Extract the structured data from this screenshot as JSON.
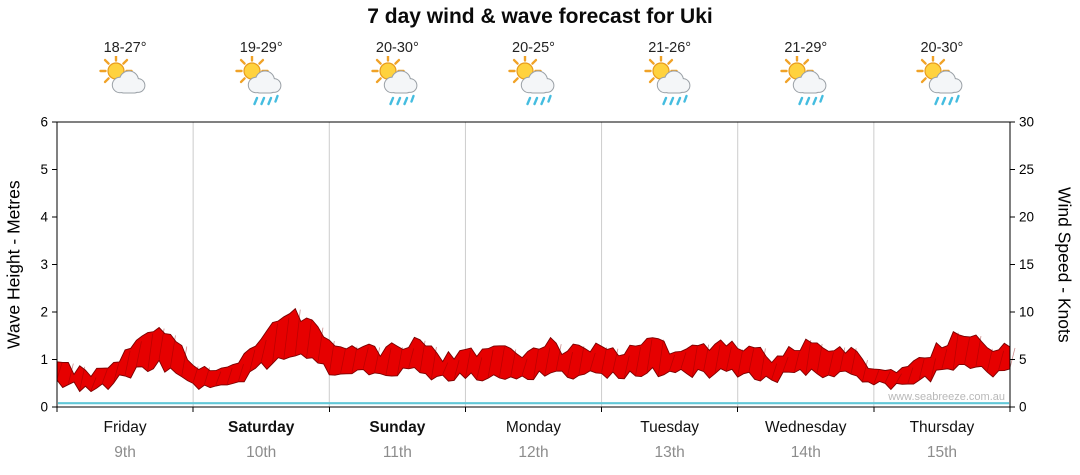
{
  "title": "7 day wind & wave forecast for Uki",
  "watermark": "www.seabreeze.com.au",
  "days": [
    {
      "name": "Friday",
      "date": "9th",
      "temp_range": "18-27°",
      "icon": "sun-cloud",
      "weekend": false
    },
    {
      "name": "Saturday",
      "date": "10th",
      "temp_range": "19-29°",
      "icon": "sun-cloud-rain",
      "weekend": true
    },
    {
      "name": "Sunday",
      "date": "11th",
      "temp_range": "20-30°",
      "icon": "sun-cloud-rain",
      "weekend": true
    },
    {
      "name": "Monday",
      "date": "12th",
      "temp_range": "20-25°",
      "icon": "sun-cloud-rain",
      "weekend": false
    },
    {
      "name": "Tuesday",
      "date": "13th",
      "temp_range": "21-26°",
      "icon": "sun-cloud-rain",
      "weekend": false
    },
    {
      "name": "Wednesday",
      "date": "14th",
      "temp_range": "21-29°",
      "icon": "sun-cloud-rain",
      "weekend": false
    },
    {
      "name": "Thursday",
      "date": "15th",
      "temp_range": "20-30°",
      "icon": "sun-cloud-rain",
      "weekend": false
    }
  ],
  "chart_data": {
    "type": "area",
    "title": "7 day wind & wave forecast for Uki",
    "x_categories": [
      "Friday 9th",
      "Saturday 10th",
      "Sunday 11th",
      "Monday 12th",
      "Tuesday 13th",
      "Wednesday 14th",
      "Thursday 15th"
    ],
    "left_axis": {
      "label": "Wave Height - Metres",
      "min": 0,
      "max": 6,
      "ticks": [
        0,
        1,
        2,
        3,
        4,
        5,
        6
      ]
    },
    "right_axis": {
      "label": "Wind Speed - Knots",
      "min": 0,
      "max": 30,
      "ticks": [
        0,
        5,
        10,
        15,
        20,
        25,
        30
      ]
    },
    "grid": "vertical-day-boundaries",
    "legend": "none",
    "series": [
      {
        "name": "Wind Speed",
        "axis": "right",
        "style": "jagged-arrow-band",
        "color": "#e60000",
        "outline": "#7a0000",
        "points_per_day": 8,
        "values_knots": [
          5.0,
          4.0,
          3.4,
          4.2,
          5.8,
          7.2,
          8.0,
          6.8,
          4.6,
          3.4,
          4.0,
          5.6,
          7.6,
          9.2,
          10.0,
          9.0,
          6.8,
          6.0,
          6.6,
          5.6,
          6.4,
          7.0,
          5.8,
          5.2,
          6.2,
          5.6,
          6.4,
          5.4,
          6.0,
          6.8,
          5.8,
          6.6,
          6.2,
          5.6,
          6.6,
          7.0,
          6.0,
          6.8,
          6.2,
          7.0,
          6.4,
          5.8,
          5.2,
          6.2,
          6.6,
          5.8,
          6.2,
          5.4,
          4.2,
          3.6,
          4.0,
          5.2,
          6.6,
          7.8,
          7.2,
          6.2,
          6.6
        ]
      },
      {
        "name": "Wave Height",
        "axis": "left",
        "style": "line",
        "color": "#62c8d8",
        "constant_value_m": 0.08
      }
    ]
  },
  "colors": {
    "grid_line": "#cccccc",
    "plot_border": "#000000",
    "date_text": "#8c8c8c",
    "watermark_text": "#b8b8b8",
    "wind_fill": "#e60000",
    "wind_outline": "#7a0000",
    "wave_line": "#62c8d8"
  }
}
